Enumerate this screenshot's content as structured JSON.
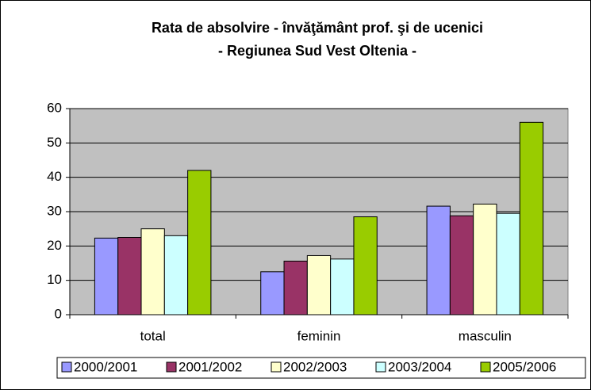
{
  "chart_data": {
    "type": "bar",
    "title": [
      "Rata de absolvire - învăţământ prof. şi de ucenici",
      "- Regiunea Sud Vest Oltenia -"
    ],
    "categories": [
      "total",
      "feminin",
      "masculin"
    ],
    "series": [
      {
        "name": "2000/2001",
        "color": "#9999ff",
        "values": [
          22.3,
          12.5,
          31.6
        ]
      },
      {
        "name": "2001/2002",
        "color": "#993366",
        "values": [
          22.5,
          15.6,
          28.8
        ]
      },
      {
        "name": "2002/2003",
        "color": "#ffffcc",
        "values": [
          25,
          17.2,
          32.2
        ]
      },
      {
        "name": "2003/2004",
        "color": "#ccffff",
        "values": [
          23,
          16.2,
          29.5
        ]
      },
      {
        "name": "2005/2006",
        "color": "#99cc00",
        "values": [
          42,
          28.5,
          56
        ]
      }
    ],
    "ylim": [
      0,
      60
    ],
    "yticks": [
      0,
      10,
      20,
      30,
      40,
      50,
      60
    ],
    "grid": true,
    "legend": "bottom"
  }
}
